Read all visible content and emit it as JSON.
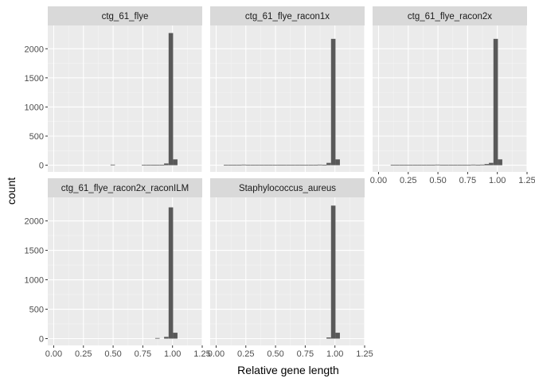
{
  "chart_data": {
    "type": "bar",
    "subtype": "faceted-histogram",
    "xlabel": "Relative gene length",
    "ylabel": "count",
    "xlim": [
      -0.05,
      1.25
    ],
    "ylim": [
      -115,
      2400
    ],
    "x_ticks": [
      0.0,
      0.25,
      0.5,
      0.75,
      1.0,
      1.25
    ],
    "x_tick_labels": [
      "0.00",
      "0.25",
      "0.50",
      "0.75",
      "1.00",
      "1.25"
    ],
    "y_ticks": [
      0,
      500,
      1000,
      1500,
      2000
    ],
    "y_tick_labels": [
      "0",
      "500",
      "1000",
      "1500",
      "2000"
    ],
    "grid": true,
    "bar_color": "#595959",
    "panel_bg": "#ebebeb",
    "strip_bg": "#d9d9d9",
    "bin_width": 0.0376,
    "facets": [
      {
        "name": "ctg_61_flye",
        "bins": [
          {
            "x": 0.497,
            "count": 10
          },
          {
            "x": 0.76,
            "count": 5
          },
          {
            "x": 0.798,
            "count": 5
          },
          {
            "x": 0.836,
            "count": 5
          },
          {
            "x": 0.873,
            "count": 5
          },
          {
            "x": 0.911,
            "count": 5
          },
          {
            "x": 0.948,
            "count": 30
          },
          {
            "x": 0.986,
            "count": 2270
          },
          {
            "x": 1.023,
            "count": 100
          }
        ]
      },
      {
        "name": "ctg_61_flye_racon1x",
        "bins": [
          {
            "x": 0.083,
            "count": 5
          },
          {
            "x": 0.121,
            "count": 5
          },
          {
            "x": 0.158,
            "count": 5
          },
          {
            "x": 0.196,
            "count": 5
          },
          {
            "x": 0.234,
            "count": 10
          },
          {
            "x": 0.271,
            "count": 5
          },
          {
            "x": 0.309,
            "count": 5
          },
          {
            "x": 0.346,
            "count": 5
          },
          {
            "x": 0.384,
            "count": 5
          },
          {
            "x": 0.422,
            "count": 5
          },
          {
            "x": 0.459,
            "count": 5
          },
          {
            "x": 0.497,
            "count": 5
          },
          {
            "x": 0.535,
            "count": 5
          },
          {
            "x": 0.572,
            "count": 5
          },
          {
            "x": 0.61,
            "count": 5
          },
          {
            "x": 0.647,
            "count": 5
          },
          {
            "x": 0.685,
            "count": 5
          },
          {
            "x": 0.723,
            "count": 5
          },
          {
            "x": 0.76,
            "count": 5
          },
          {
            "x": 0.798,
            "count": 5
          },
          {
            "x": 0.836,
            "count": 5
          },
          {
            "x": 0.873,
            "count": 10
          },
          {
            "x": 0.911,
            "count": 5
          },
          {
            "x": 0.948,
            "count": 40
          },
          {
            "x": 0.986,
            "count": 2170
          },
          {
            "x": 1.023,
            "count": 100
          }
        ]
      },
      {
        "name": "ctg_61_flye_racon2x",
        "bins": [
          {
            "x": 0.121,
            "count": 5
          },
          {
            "x": 0.158,
            "count": 5
          },
          {
            "x": 0.196,
            "count": 5
          },
          {
            "x": 0.234,
            "count": 5
          },
          {
            "x": 0.271,
            "count": 5
          },
          {
            "x": 0.309,
            "count": 5
          },
          {
            "x": 0.346,
            "count": 5
          },
          {
            "x": 0.384,
            "count": 5
          },
          {
            "x": 0.422,
            "count": 5
          },
          {
            "x": 0.459,
            "count": 5
          },
          {
            "x": 0.497,
            "count": 10
          },
          {
            "x": 0.535,
            "count": 5
          },
          {
            "x": 0.572,
            "count": 5
          },
          {
            "x": 0.61,
            "count": 5
          },
          {
            "x": 0.647,
            "count": 5
          },
          {
            "x": 0.685,
            "count": 5
          },
          {
            "x": 0.723,
            "count": 5
          },
          {
            "x": 0.76,
            "count": 5
          },
          {
            "x": 0.798,
            "count": 10
          },
          {
            "x": 0.836,
            "count": 5
          },
          {
            "x": 0.873,
            "count": 10
          },
          {
            "x": 0.911,
            "count": 20
          },
          {
            "x": 0.948,
            "count": 40
          },
          {
            "x": 0.986,
            "count": 2170
          },
          {
            "x": 1.023,
            "count": 100
          }
        ]
      },
      {
        "name": "ctg_61_flye_racon2x_raconILM",
        "bins": [
          {
            "x": 0.873,
            "count": 10
          },
          {
            "x": 0.948,
            "count": 30
          },
          {
            "x": 0.986,
            "count": 2230
          },
          {
            "x": 1.023,
            "count": 100
          }
        ]
      },
      {
        "name": "Staphylococcus_aureus",
        "bins": [
          {
            "x": 0.948,
            "count": 20
          },
          {
            "x": 0.986,
            "count": 2260
          },
          {
            "x": 1.023,
            "count": 100
          }
        ]
      }
    ]
  }
}
